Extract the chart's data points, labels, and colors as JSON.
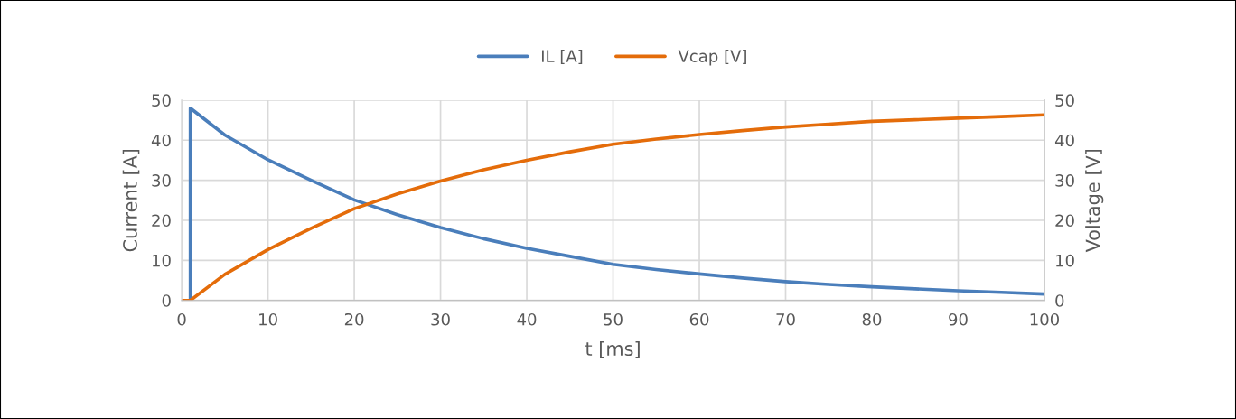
{
  "chart_data": {
    "type": "line",
    "xlabel": "t [ms]",
    "ylabel": "Current [A]",
    "y2label": "Voltage [V]",
    "xlim": [
      0,
      100
    ],
    "xticks": [
      0,
      10,
      20,
      30,
      40,
      50,
      60,
      70,
      80,
      90,
      100
    ],
    "ylim": [
      0,
      50
    ],
    "yticks": [
      0,
      10,
      20,
      30,
      40,
      50
    ],
    "y2lim": [
      0,
      50
    ],
    "y2ticks": [
      0,
      10,
      20,
      30,
      40,
      50
    ],
    "grid": true,
    "legend": "top",
    "marker": "none",
    "line_style": "solid",
    "series": [
      {
        "name": "IL [A]",
        "color": "#4a7ebb",
        "x": [
          0,
          1,
          1,
          5,
          10,
          15,
          20,
          25,
          30,
          35,
          40,
          45,
          50,
          55,
          60,
          65,
          70,
          75,
          80,
          85,
          90,
          95,
          100
        ],
        "values": [
          0,
          0,
          48,
          41.3,
          35.1,
          30,
          25.1,
          21.4,
          18.2,
          15.4,
          13,
          11,
          9,
          7.7,
          6.6,
          5.6,
          4.7,
          4,
          3.4,
          2.9,
          2.4,
          2,
          1.6
        ]
      },
      {
        "name": "Vcap [V]",
        "color": "#e46c0a",
        "axis": "y2",
        "x": [
          0,
          1,
          5,
          10,
          15,
          20,
          25,
          30,
          35,
          40,
          45,
          50,
          55,
          60,
          65,
          70,
          75,
          80,
          85,
          90,
          95,
          100
        ],
        "values": [
          0,
          0,
          6.5,
          12.7,
          18,
          22.9,
          26.6,
          29.8,
          32.6,
          35,
          37.1,
          39,
          40.3,
          41.4,
          42.4,
          43.3,
          44,
          44.7,
          45.1,
          45.5,
          45.9,
          46.3
        ]
      }
    ]
  }
}
